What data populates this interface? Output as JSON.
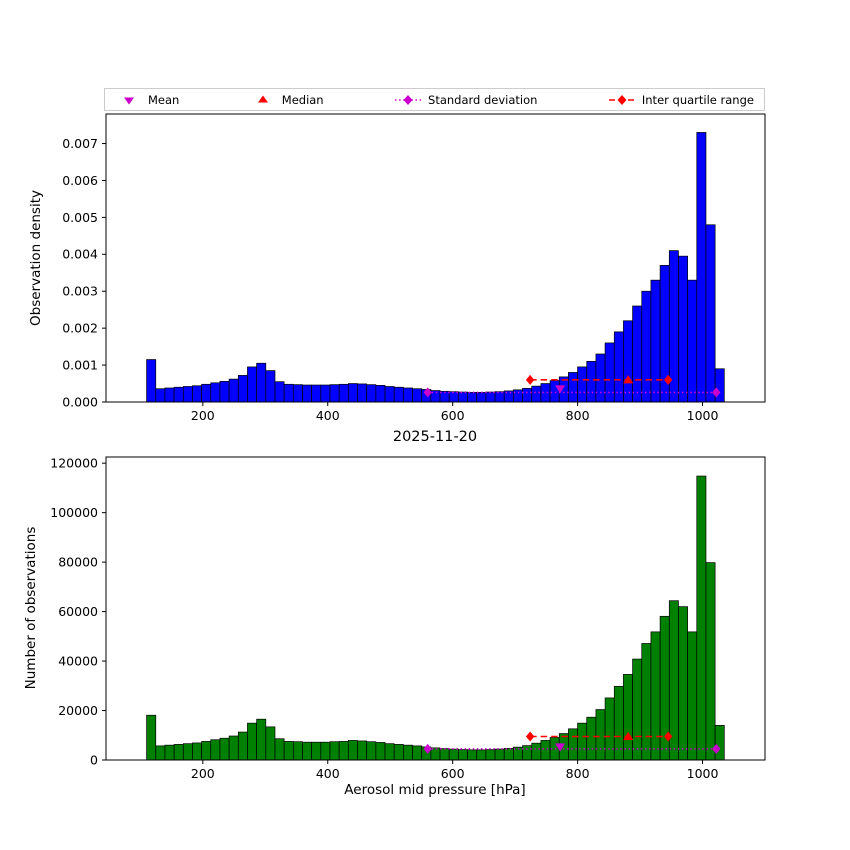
{
  "title": "2025-11-20",
  "xlabel": "Aerosol mid pressure [hPa]",
  "colors": {
    "mean": "#cc00cc",
    "median": "#ff0000",
    "std": "#cc00cc",
    "iqr": "#ff0000",
    "top_bar": "#0000ff",
    "bottom_bar": "#008000",
    "bar_edge": "#000000"
  },
  "legend": {
    "items": [
      {
        "label": "Mean",
        "marker": "triangle-down",
        "color": "#cc00cc",
        "line": "none"
      },
      {
        "label": "Median",
        "marker": "triangle-up",
        "color": "#ff0000",
        "line": "none"
      },
      {
        "label": "Standard deviation",
        "marker": "diamond",
        "color": "#cc00cc",
        "line": "dotted"
      },
      {
        "label": "Inter quartile range",
        "marker": "diamond",
        "color": "#ff0000",
        "line": "dashed"
      }
    ]
  },
  "chart_data": [
    {
      "type": "bar",
      "name": "observation-density-histogram",
      "ylabel": "Observation density",
      "bar_color_key": "top_bar",
      "bin_start": 110,
      "bin_width": 14.68,
      "xlim": [
        45,
        1100
      ],
      "ylim": [
        0,
        0.0078
      ],
      "xticks": [
        200,
        400,
        600,
        800,
        1000
      ],
      "yticks": [
        {
          "v": 0.0,
          "label": "0.000"
        },
        {
          "v": 0.001,
          "label": "0.001"
        },
        {
          "v": 0.002,
          "label": "0.002"
        },
        {
          "v": 0.003,
          "label": "0.003"
        },
        {
          "v": 0.004,
          "label": "0.004"
        },
        {
          "v": 0.005,
          "label": "0.005"
        },
        {
          "v": 0.006,
          "label": "0.006"
        },
        {
          "v": 0.007,
          "label": "0.007"
        }
      ],
      "values": [
        0.00115,
        0.00036,
        0.00038,
        0.0004,
        0.00042,
        0.00044,
        0.00048,
        0.00052,
        0.00056,
        0.00062,
        0.00072,
        0.00095,
        0.00105,
        0.00085,
        0.00055,
        0.00048,
        0.00047,
        0.00046,
        0.00046,
        0.00046,
        0.00047,
        0.00048,
        0.0005,
        0.00049,
        0.00047,
        0.00045,
        0.00042,
        0.0004,
        0.00038,
        0.00036,
        0.00034,
        0.00031,
        0.00029,
        0.00028,
        0.00027,
        0.00026,
        0.00026,
        0.00027,
        0.00028,
        0.0003,
        0.00033,
        0.00037,
        0.00043,
        0.0005,
        0.00058,
        0.00068,
        0.0008,
        0.00095,
        0.0011,
        0.0013,
        0.0016,
        0.0019,
        0.0022,
        0.0026,
        0.003,
        0.0033,
        0.0037,
        0.0041,
        0.00395,
        0.0033,
        0.0073,
        0.0048,
        0.0009
      ],
      "markers": {
        "mean": {
          "x": 772,
          "y": 0.00036
        },
        "median": {
          "x": 881,
          "y": 0.0006
        },
        "std_dev": {
          "x1": 560,
          "x2": 1022,
          "y": 0.00026
        },
        "iqr": {
          "x1": 724,
          "x2": 945,
          "y": 0.0006
        }
      }
    },
    {
      "type": "bar",
      "name": "observation-count-histogram",
      "ylabel": "Number of observations",
      "bar_color_key": "bottom_bar",
      "bin_start": 110,
      "bin_width": 14.68,
      "xlim": [
        45,
        1100
      ],
      "ylim": [
        0,
        122500
      ],
      "xticks": [
        200,
        400,
        600,
        800,
        1000
      ],
      "yticks": [
        {
          "v": 0,
          "label": "0"
        },
        {
          "v": 20000,
          "label": "20000"
        },
        {
          "v": 40000,
          "label": "40000"
        },
        {
          "v": 60000,
          "label": "60000"
        },
        {
          "v": 80000,
          "label": "80000"
        },
        {
          "v": 100000,
          "label": "100000"
        },
        {
          "v": 120000,
          "label": "120000"
        }
      ],
      "values": [
        18100,
        5700,
        6000,
        6300,
        6600,
        6900,
        7500,
        8200,
        8800,
        9700,
        11300,
        14900,
        16500,
        13400,
        8600,
        7500,
        7400,
        7200,
        7200,
        7200,
        7400,
        7500,
        7900,
        7700,
        7400,
        7100,
        6600,
        6300,
        6000,
        5700,
        5300,
        4900,
        4600,
        4400,
        4200,
        4100,
        4100,
        4200,
        4400,
        4700,
        5200,
        5800,
        6800,
        7900,
        9100,
        10700,
        12600,
        14900,
        17300,
        20400,
        25100,
        29800,
        34600,
        40800,
        47100,
        51800,
        58100,
        64400,
        62000,
        51800,
        114800,
        79800,
        14000
      ],
      "markers": {
        "mean": {
          "x": 772,
          "y": 5300
        },
        "median": {
          "x": 881,
          "y": 9500
        },
        "std_dev": {
          "x1": 560,
          "x2": 1022,
          "y": 4500
        },
        "iqr": {
          "x1": 724,
          "x2": 945,
          "y": 9500
        }
      }
    }
  ]
}
